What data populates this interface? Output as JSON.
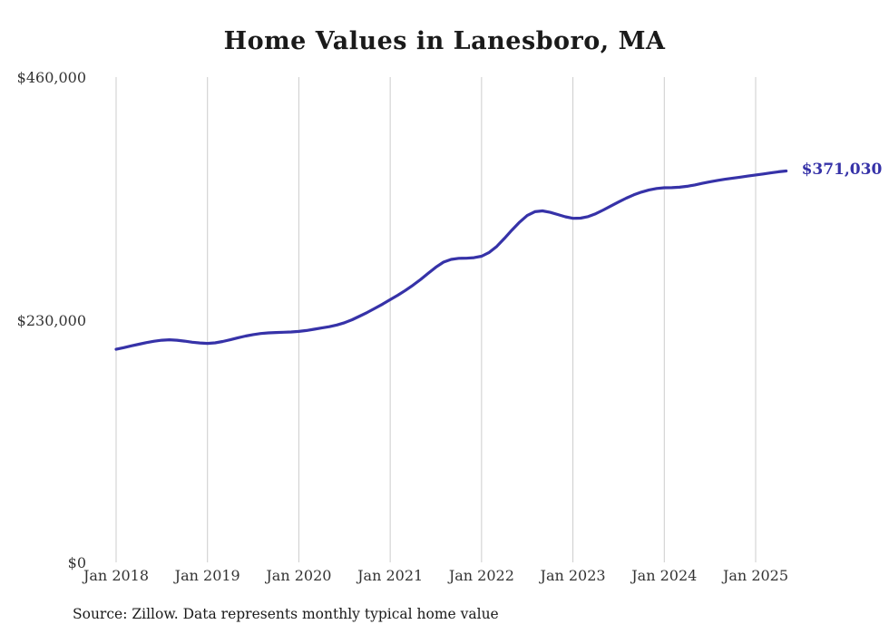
{
  "title": "Home Values in Lanesboro, MA",
  "end_label": "$371,030",
  "source_note": "Source: Zillow. Data represents monthly typical home value",
  "colors": {
    "line": "#3632a8",
    "grid": "#cccccc",
    "axis_text": "#333333",
    "title_text": "#1a1a1a"
  },
  "chart_data": {
    "type": "line",
    "title": "Home Values in Lanesboro, MA",
    "xlabel": "",
    "ylabel": "",
    "ylim": [
      0,
      460000
    ],
    "y_tick_labels": [
      "$460,000",
      "$230,000",
      "$0"
    ],
    "y_tick_values": [
      460000,
      230000,
      0
    ],
    "x_tick_labels": [
      "Jan 2018",
      "Jan 2019",
      "Jan 2020",
      "Jan 2021",
      "Jan 2022",
      "Jan 2023",
      "Jan 2024",
      "Jan 2025"
    ],
    "grid": "vertical-only",
    "legend": "none",
    "annotation": {
      "text": "$371,030",
      "value": 371030,
      "position": "line-end"
    },
    "series": [
      {
        "name": "Monthly typical home value",
        "x_start": "2018-01",
        "x_interval": "monthly",
        "values": [
          202000,
          203500,
          205200,
          206800,
          208300,
          209600,
          210600,
          211000,
          210600,
          209700,
          208700,
          208000,
          207600,
          208100,
          209400,
          211000,
          212900,
          214500,
          215900,
          216900,
          217500,
          217900,
          218100,
          218400,
          218900,
          219800,
          221000,
          222200,
          223400,
          225000,
          227200,
          230000,
          233400,
          237000,
          240800,
          244800,
          249000,
          253200,
          257800,
          262800,
          268200,
          274000,
          279800,
          284600,
          287200,
          288200,
          288300,
          288800,
          290200,
          293800,
          299500,
          307000,
          315000,
          322500,
          328800,
          332400,
          333200,
          331800,
          329700,
          327600,
          326100,
          326300,
          327800,
          330500,
          334000,
          337800,
          341600,
          345200,
          348400,
          351000,
          353000,
          354400,
          355100,
          355200,
          355600,
          356500,
          357800,
          359300,
          360800,
          362100,
          363200,
          364200,
          365200,
          366200,
          367200,
          368200,
          369200,
          370200,
          371030
        ]
      }
    ]
  }
}
